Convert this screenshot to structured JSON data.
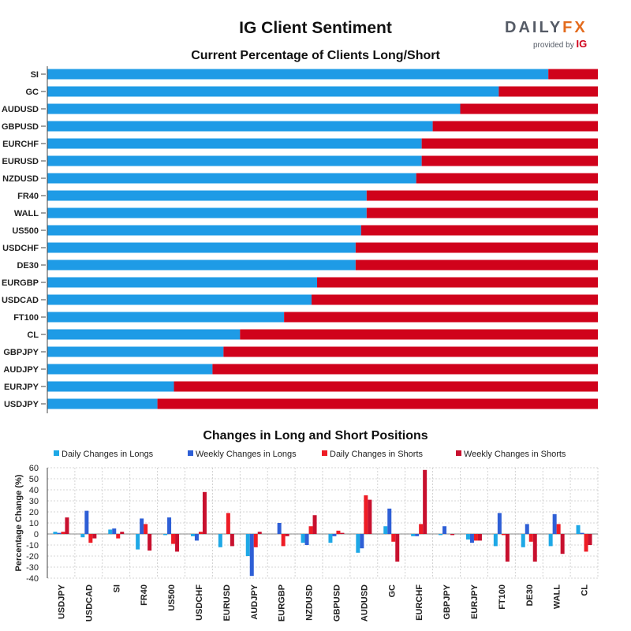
{
  "header": {
    "title": "IG Client Sentiment",
    "logo_main": "DAILY",
    "logo_accent": "FX",
    "logo_provided": "provided by",
    "logo_ig": "IG"
  },
  "colors": {
    "long": "#1e9be6",
    "short": "#d0021b",
    "daily_longs": "#1ea8e6",
    "weekly_longs": "#2e5fd6",
    "daily_shorts": "#ee1c25",
    "weekly_shorts": "#c8102e"
  },
  "chart_data": [
    {
      "type": "bar",
      "orientation": "horizontal",
      "stacked": true,
      "title": "Current Percentage of Clients Long/Short",
      "categories": [
        "SI",
        "GC",
        "AUDUSD",
        "GBPUSD",
        "EURCHF",
        "EURUSD",
        "NZDUSD",
        "FR40",
        "WALL",
        "US500",
        "USDCHF",
        "DE30",
        "EURGBP",
        "USDCAD",
        "FT100",
        "CL",
        "GBPJPY",
        "AUDJPY",
        "EURJPY",
        "USDJPY"
      ],
      "series": [
        {
          "values": [
            91,
            82,
            75,
            70,
            68,
            68,
            67,
            58,
            58,
            57,
            56,
            56,
            49,
            48,
            43,
            35,
            32,
            30,
            23,
            20
          ]
        },
        {
          "values": [
            9,
            18,
            25,
            30,
            32,
            32,
            33,
            42,
            42,
            43,
            44,
            44,
            51,
            52,
            57,
            65,
            68,
            70,
            77,
            80
          ]
        }
      ],
      "xlim": [
        0,
        100
      ],
      "grid": false
    },
    {
      "type": "bar",
      "title": "Changes in Long and Short Positions",
      "ylabel": "Percentage Change (%)",
      "ylim": [
        -40,
        60
      ],
      "yticks": [
        60,
        50,
        40,
        30,
        20,
        10,
        0,
        -10,
        -20,
        -30,
        -40
      ],
      "categories": [
        "USDJPY",
        "USDCAD",
        "SI",
        "FR40",
        "US500",
        "USDCHF",
        "EURUSD",
        "AUDJPY",
        "EURGBP",
        "NZDUSD",
        "GBPUSD",
        "AUDUSD",
        "GC",
        "EURCHF",
        "GBPJPY",
        "EURJPY",
        "FT100",
        "DE30",
        "WALL",
        "CL"
      ],
      "legend_position": "top",
      "grid": true,
      "series": [
        {
          "name": "Daily Changes in Longs",
          "values": [
            2,
            -3,
            4,
            -14,
            -1,
            -2,
            -12,
            -20,
            0,
            -8,
            -8,
            -17,
            7,
            -2,
            -1,
            -5,
            -11,
            -12,
            -11,
            8
          ]
        },
        {
          "name": "Weekly Changes in Longs",
          "values": [
            1,
            21,
            5,
            14,
            15,
            -6,
            0,
            -38,
            10,
            -10,
            -2,
            -13,
            23,
            -2,
            7,
            -8,
            19,
            9,
            18,
            1
          ]
        },
        {
          "name": "Daily Changes in Shorts",
          "values": [
            2,
            -8,
            -4,
            9,
            -9,
            2,
            19,
            -12,
            -11,
            7,
            3,
            35,
            -7,
            9,
            0,
            -6,
            -1,
            -7,
            9,
            -16
          ]
        },
        {
          "name": "Weekly Changes in Shorts",
          "values": [
            15,
            -4,
            2,
            -15,
            -16,
            38,
            -11,
            2,
            -2,
            17,
            1,
            31,
            -25,
            58,
            -1,
            -6,
            -25,
            -25,
            -18,
            -10
          ]
        }
      ]
    }
  ]
}
